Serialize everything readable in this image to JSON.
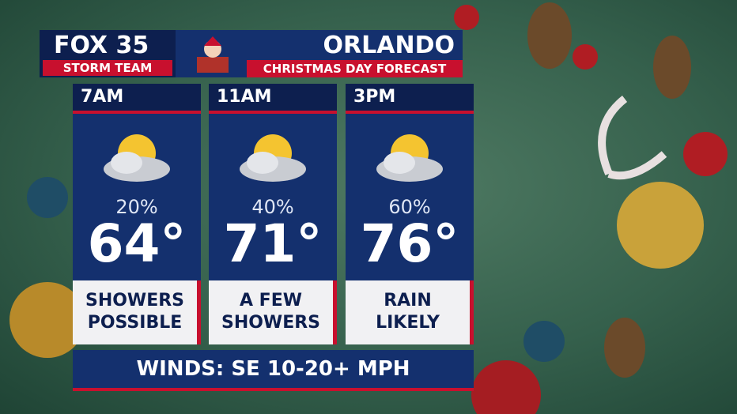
{
  "header": {
    "logo": "FOX 35",
    "logo_sub": "STORM TEAM",
    "city": "ORLANDO",
    "subtitle": "CHRISTMAS DAY FORECAST"
  },
  "periods": [
    {
      "time": "7AM",
      "chance": "20%",
      "temp": "64°",
      "condition": [
        "SHOWERS",
        "POSSIBLE"
      ]
    },
    {
      "time": "11AM",
      "chance": "40%",
      "temp": "71°",
      "condition": [
        "A FEW",
        "SHOWERS"
      ]
    },
    {
      "time": "3PM",
      "chance": "60%",
      "temp": "76°",
      "condition": [
        "RAIN",
        "LIKELY"
      ]
    }
  ],
  "footer": "WINDS: SE 10-20+ MPH"
}
